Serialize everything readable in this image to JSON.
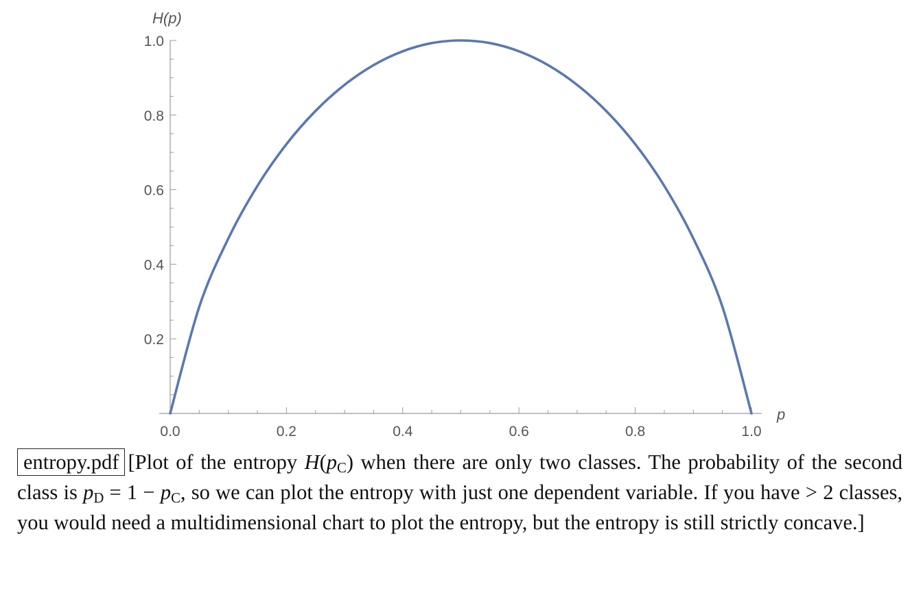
{
  "chart_data": {
    "type": "line",
    "title": "",
    "xlabel": "p",
    "ylabel": "H(p)",
    "xlim": [
      0.0,
      1.0
    ],
    "ylim": [
      0.0,
      1.0
    ],
    "x_ticks": [
      "0.0",
      "0.2",
      "0.4",
      "0.6",
      "0.8",
      "1.0"
    ],
    "y_ticks": [
      "0.2",
      "0.4",
      "0.6",
      "0.8",
      "1.0"
    ],
    "series": [
      {
        "name": "H(p)",
        "color": "#5a78b0",
        "x": [
          0.0,
          0.05,
          0.1,
          0.15,
          0.2,
          0.25,
          0.3,
          0.35,
          0.4,
          0.45,
          0.5,
          0.55,
          0.6,
          0.65,
          0.7,
          0.75,
          0.8,
          0.85,
          0.9,
          0.95,
          1.0
        ],
        "y": [
          0.0,
          0.286,
          0.469,
          0.61,
          0.722,
          0.811,
          0.881,
          0.934,
          0.971,
          0.993,
          1.0,
          0.993,
          0.971,
          0.934,
          0.881,
          0.811,
          0.722,
          0.61,
          0.469,
          0.286,
          0.0
        ]
      }
    ]
  },
  "caption": {
    "filename": "entropy.pdf",
    "open_bracket": "[",
    "t1": "Plot of the entropy ",
    "H": "H",
    "paren_open": "(",
    "p1": "p",
    "sub_C1": "C",
    "paren_close": ")",
    "t2": " when there are only two classes. The probability of the second class is ",
    "p2": "p",
    "sub_D": "D",
    "eq": " = 1 − ",
    "p3": "p",
    "sub_C2": "C",
    "t3": ", so we can plot the entropy with just one dependent variable. If you have > 2 classes, you would need a multidimensional chart to plot the entropy, but the entropy is still strictly concave.",
    "close_bracket": "]"
  }
}
